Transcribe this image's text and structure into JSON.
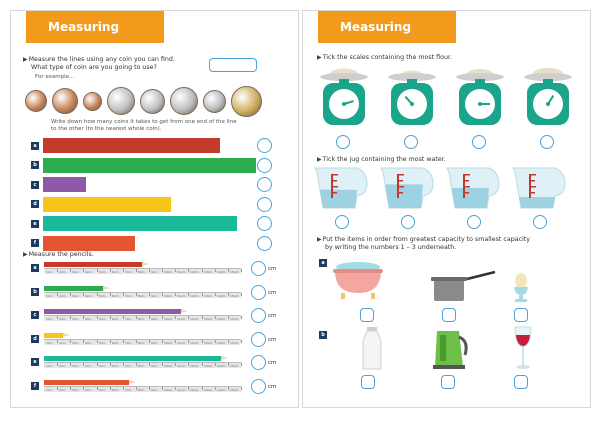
{
  "page1": {
    "title": "Measuring",
    "q1": {
      "line1": "Measure the lines using any coin you can find.",
      "line2": "What type of coin are you going to use?",
      "example": "For example...",
      "instruction_line1": "Write down how many coins it takes to get from one end of the line",
      "instruction_line2": "to the other (to the nearest whole coin)."
    },
    "coin_colors": [
      "#c8845a",
      "#c8845a",
      "#c8845a",
      "#c0c0c0",
      "#c0c0c0",
      "#bdbdbd",
      "#bdbdbd",
      "#cfae5a"
    ],
    "bars": [
      {
        "label": "a",
        "color": "#c43a2b",
        "fraction": 0.83
      },
      {
        "label": "b",
        "color": "#2dab4f",
        "fraction": 1.0
      },
      {
        "label": "c",
        "color": "#8e5aa8",
        "fraction": 0.2
      },
      {
        "label": "d",
        "color": "#f5c518",
        "fraction": 0.6
      },
      {
        "label": "e",
        "color": "#1bb89a",
        "fraction": 0.91
      },
      {
        "label": "f",
        "color": "#e4562f",
        "fraction": 0.43
      }
    ],
    "q2": {
      "text": "Measure the pencils."
    },
    "ruler_marks": [
      "1cm",
      "2cm",
      "3cm",
      "4cm",
      "5cm",
      "6cm",
      "7cm",
      "8cm",
      "9cm",
      "10cm",
      "11cm",
      "12cm",
      "13cm",
      "14cm",
      "15cm"
    ],
    "pencils": [
      {
        "label": "a",
        "color": "#c43a2b",
        "length_cm": 8
      },
      {
        "label": "b",
        "color": "#2dab4f",
        "length_cm": 5
      },
      {
        "label": "c",
        "color": "#8e5aa8",
        "length_cm": 11
      },
      {
        "label": "d",
        "color": "#f5c518",
        "length_cm": 2
      },
      {
        "label": "e",
        "color": "#1bb89a",
        "length_cm": 14
      },
      {
        "label": "f",
        "color": "#e4562f",
        "length_cm": 7
      }
    ],
    "unit": "cm"
  },
  "page2": {
    "title": "Measuring",
    "q1": "Tick the scales containing the most flour.",
    "q2": "Tick the jug containing the most water.",
    "jug_levels": [
      0.45,
      0.6,
      0.5,
      0.25
    ],
    "q3_line1": "Put the items in order from greatest capacity to smallest capacity",
    "q3_line2": "by writing the numbers 1 – 3 underneath.",
    "section_a": "a",
    "section_b": "b"
  }
}
